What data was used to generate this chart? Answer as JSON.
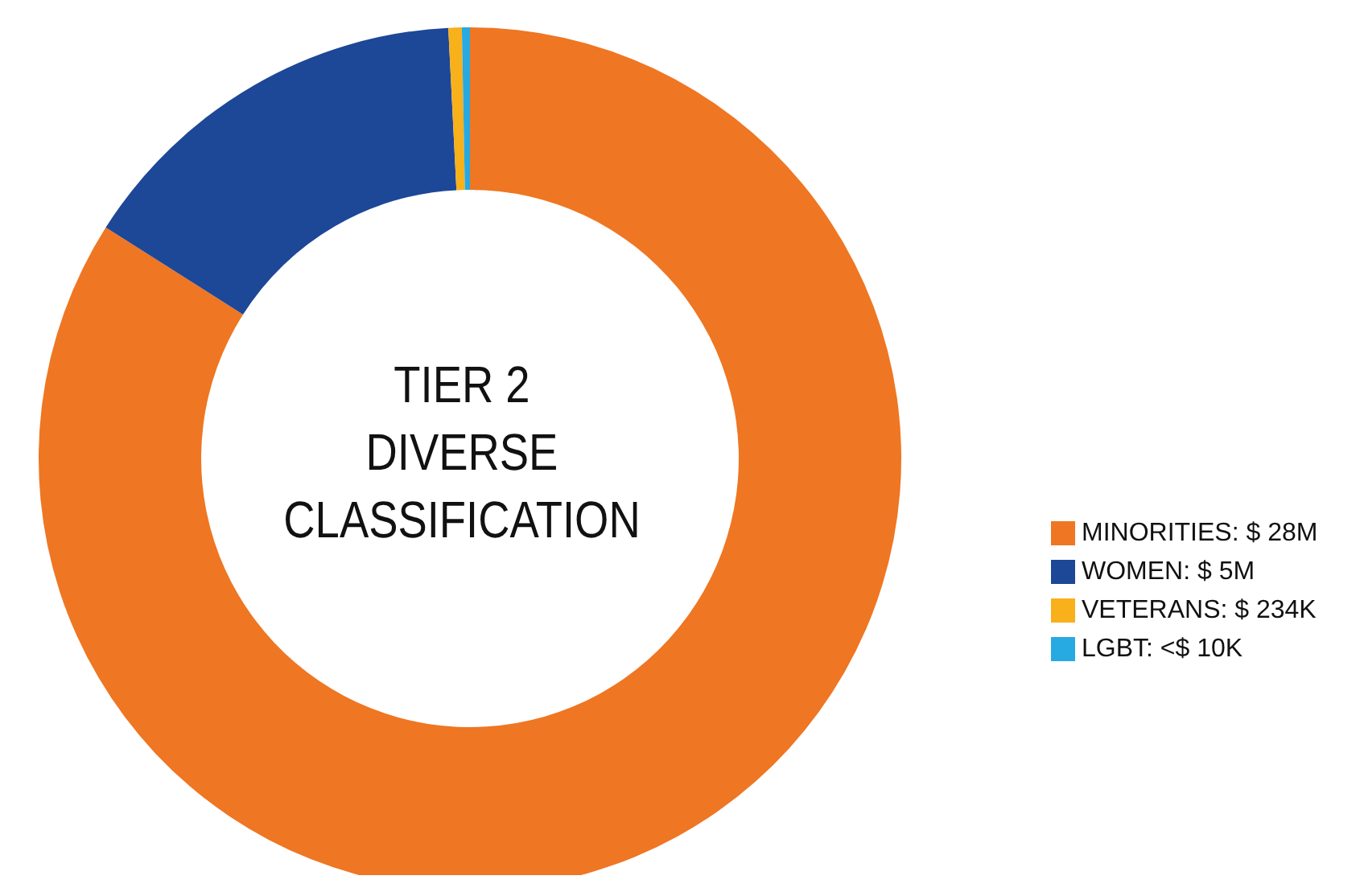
{
  "chart_data": {
    "type": "donut",
    "title": "TIER 2\nDIVERSE\nCLASSIFICATION",
    "categories": [
      "MINORITIES: $ 28M",
      "WOMEN: $ 5M",
      "VETERANS: $ 234K",
      "LGBT: <$ 10K"
    ],
    "values": [
      84,
      15.2,
      0.5,
      0.3
    ],
    "colors": [
      "#ef7622",
      "#1d4797",
      "#f8b01b",
      "#27a9e1"
    ],
    "legend": "right"
  }
}
